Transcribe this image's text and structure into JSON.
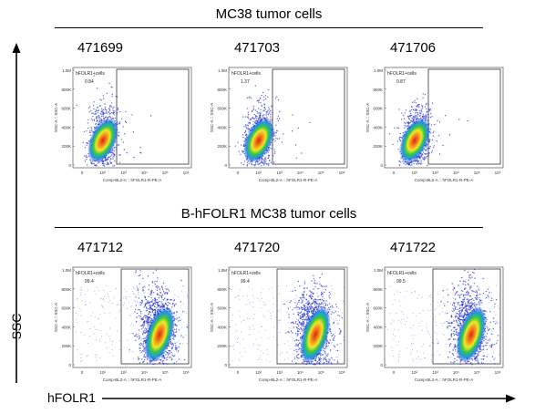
{
  "groups": [
    {
      "title": "MC38 tumor cells",
      "samples": [
        "471699",
        "471703",
        "471706"
      ],
      "percents": [
        "0.84",
        "1.37",
        "0.87"
      ]
    },
    {
      "title": "B-hFOLR1 MC38 tumor cells",
      "samples": [
        "471712",
        "471720",
        "471722"
      ],
      "percents": [
        "99.4",
        "99.4",
        "99.5"
      ]
    }
  ],
  "gate_label": "hFOLR1+cells",
  "plot_ylabel": "SSC-A :: SSC-A",
  "plot_xlabel_top": "Comp-BL2-A :: hFOLR1-R-PE-A",
  "plot_xlabel_bottom": "Comp-BL2-A :: hFOLR1-R-PE-A",
  "y_ticks": [
    "1.0M",
    "800K",
    "600K",
    "400K",
    "200K",
    "0"
  ],
  "x_ticks": [
    "0",
    "10²",
    "10³",
    "10⁴",
    "10⁵",
    "10⁶"
  ],
  "axis_left": "SSC",
  "axis_bottom": "hFOLR1",
  "chart_data": {
    "type": "scatter",
    "title": "",
    "xlabel": "hFOLR1",
    "ylabel": "SSC",
    "x_scale": "log",
    "ylim": [
      0,
      1000000
    ],
    "panels": [
      {
        "group": "MC38 tumor cells",
        "sample": "471699",
        "gate": "hFOLR1+cells",
        "gate_percent": 0.84
      },
      {
        "group": "MC38 tumor cells",
        "sample": "471703",
        "gate": "hFOLR1+cells",
        "gate_percent": 1.37
      },
      {
        "group": "MC38 tumor cells",
        "sample": "471706",
        "gate": "hFOLR1+cells",
        "gate_percent": 0.87
      },
      {
        "group": "B-hFOLR1 MC38 tumor cells",
        "sample": "471712",
        "gate": "hFOLR1+cells",
        "gate_percent": 99.4
      },
      {
        "group": "B-hFOLR1 MC38 tumor cells",
        "sample": "471720",
        "gate": "hFOLR1+cells",
        "gate_percent": 99.4
      },
      {
        "group": "B-hFOLR1 MC38 tumor cells",
        "sample": "471722",
        "gate": "hFOLR1+cells",
        "gate_percent": 99.5
      }
    ]
  }
}
